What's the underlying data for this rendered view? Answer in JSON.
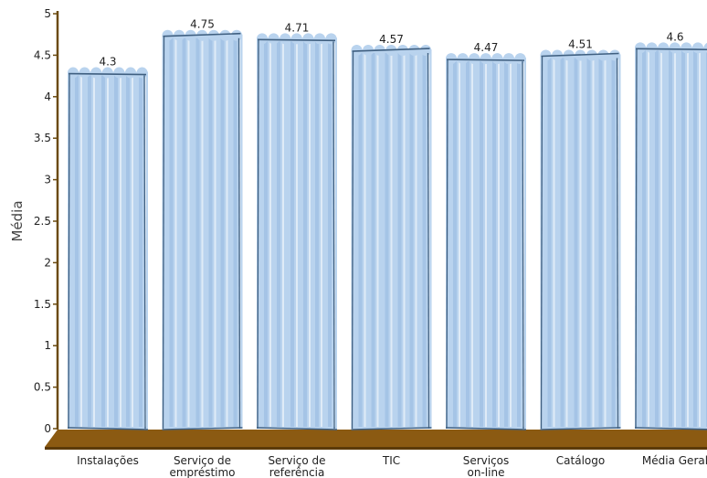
{
  "chart_data": {
    "type": "bar",
    "title": "",
    "xlabel": "",
    "ylabel": "Média",
    "ylim": [
      0,
      5
    ],
    "yticks": [
      "0",
      "0.5",
      "1",
      "1.5",
      "2",
      "2.5",
      "3",
      "3.5",
      "4",
      "4.5",
      "5"
    ],
    "categories": [
      [
        "Instalações"
      ],
      [
        "Serviço de",
        "empréstimo"
      ],
      [
        "Serviço de",
        "referência"
      ],
      [
        "TIC"
      ],
      [
        "Serviços",
        "on-line"
      ],
      [
        "Catálogo"
      ],
      [
        "Média Geral"
      ]
    ],
    "values": [
      4.3,
      4.75,
      4.71,
      4.57,
      4.47,
      4.51,
      4.6
    ],
    "value_labels": [
      "4.3",
      "4.75",
      "4.71",
      "4.57",
      "4.47",
      "4.51",
      "4.6"
    ],
    "colors": {
      "bar_fill": "#b9d3ee",
      "bar_stripe": "#9fbfe3",
      "bar_outline": "#3f5f80",
      "floor": "#8b5a12",
      "floor_dark": "#5c3a08",
      "axis": "#6b4a10"
    },
    "grid": false
  }
}
